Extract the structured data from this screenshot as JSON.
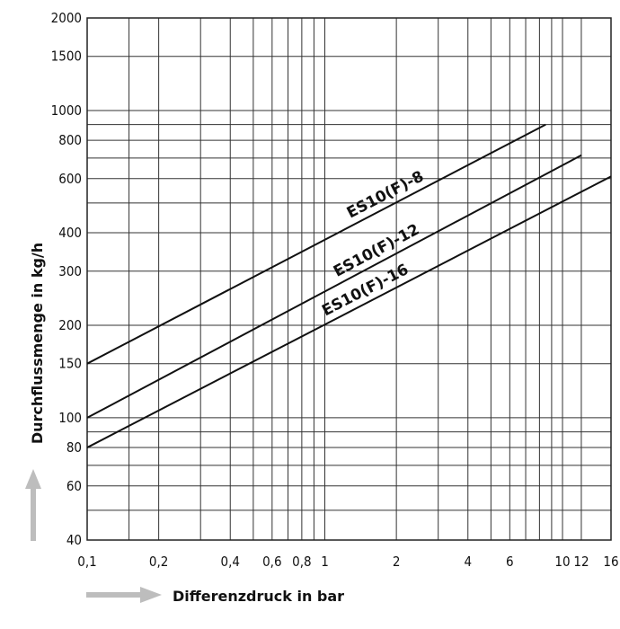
{
  "chart_data": {
    "type": "line",
    "xscale": "log",
    "yscale": "log",
    "xlim": [
      0.1,
      16
    ],
    "ylim": [
      40,
      2000
    ],
    "xlabel": "Differenzdruck in bar",
    "ylabel": "Durchflussmenge in kg/h",
    "x_ticks": [
      {
        "value": 0.1,
        "label": "0,1"
      },
      {
        "value": 0.2,
        "label": "0,2"
      },
      {
        "value": 0.4,
        "label": "0,4"
      },
      {
        "value": 0.6,
        "label": "0,6"
      },
      {
        "value": 0.8,
        "label": "0,8"
      },
      {
        "value": 1,
        "label": "1"
      },
      {
        "value": 2,
        "label": "2"
      },
      {
        "value": 4,
        "label": "4"
      },
      {
        "value": 6,
        "label": "6"
      },
      {
        "value": 10,
        "label": "10"
      },
      {
        "value": 12,
        "label": "12"
      },
      {
        "value": 16,
        "label": "16"
      }
    ],
    "x_grid": [
      0.1,
      0.15,
      0.2,
      0.3,
      0.4,
      0.5,
      0.6,
      0.7,
      0.8,
      0.9,
      1,
      2,
      3,
      4,
      5,
      6,
      7,
      8,
      9,
      10,
      12,
      16
    ],
    "y_ticks": [
      {
        "value": 40,
        "label": "40"
      },
      {
        "value": 60,
        "label": "60"
      },
      {
        "value": 80,
        "label": "80"
      },
      {
        "value": 100,
        "label": "100"
      },
      {
        "value": 150,
        "label": "150"
      },
      {
        "value": 200,
        "label": "200"
      },
      {
        "value": 300,
        "label": "300"
      },
      {
        "value": 400,
        "label": "400"
      },
      {
        "value": 600,
        "label": "600"
      },
      {
        "value": 800,
        "label": "800"
      },
      {
        "value": 1000,
        "label": "1000"
      },
      {
        "value": 1500,
        "label": "1500"
      },
      {
        "value": 2000,
        "label": "2000"
      }
    ],
    "y_grid": [
      40,
      50,
      60,
      70,
      80,
      90,
      100,
      150,
      200,
      300,
      400,
      500,
      600,
      700,
      800,
      900,
      1000,
      1500,
      2000
    ],
    "grid": true,
    "series": [
      {
        "name": "ES10(F)-8",
        "x": [
          0.1,
          8.5
        ],
        "y": [
          150,
          900
        ]
      },
      {
        "name": "ES10(F)-12",
        "x": [
          0.1,
          12
        ],
        "y": [
          100,
          715
        ]
      },
      {
        "name": "ES10(F)-16",
        "x": [
          0.1,
          16
        ],
        "y": [
          80,
          610
        ]
      }
    ]
  }
}
